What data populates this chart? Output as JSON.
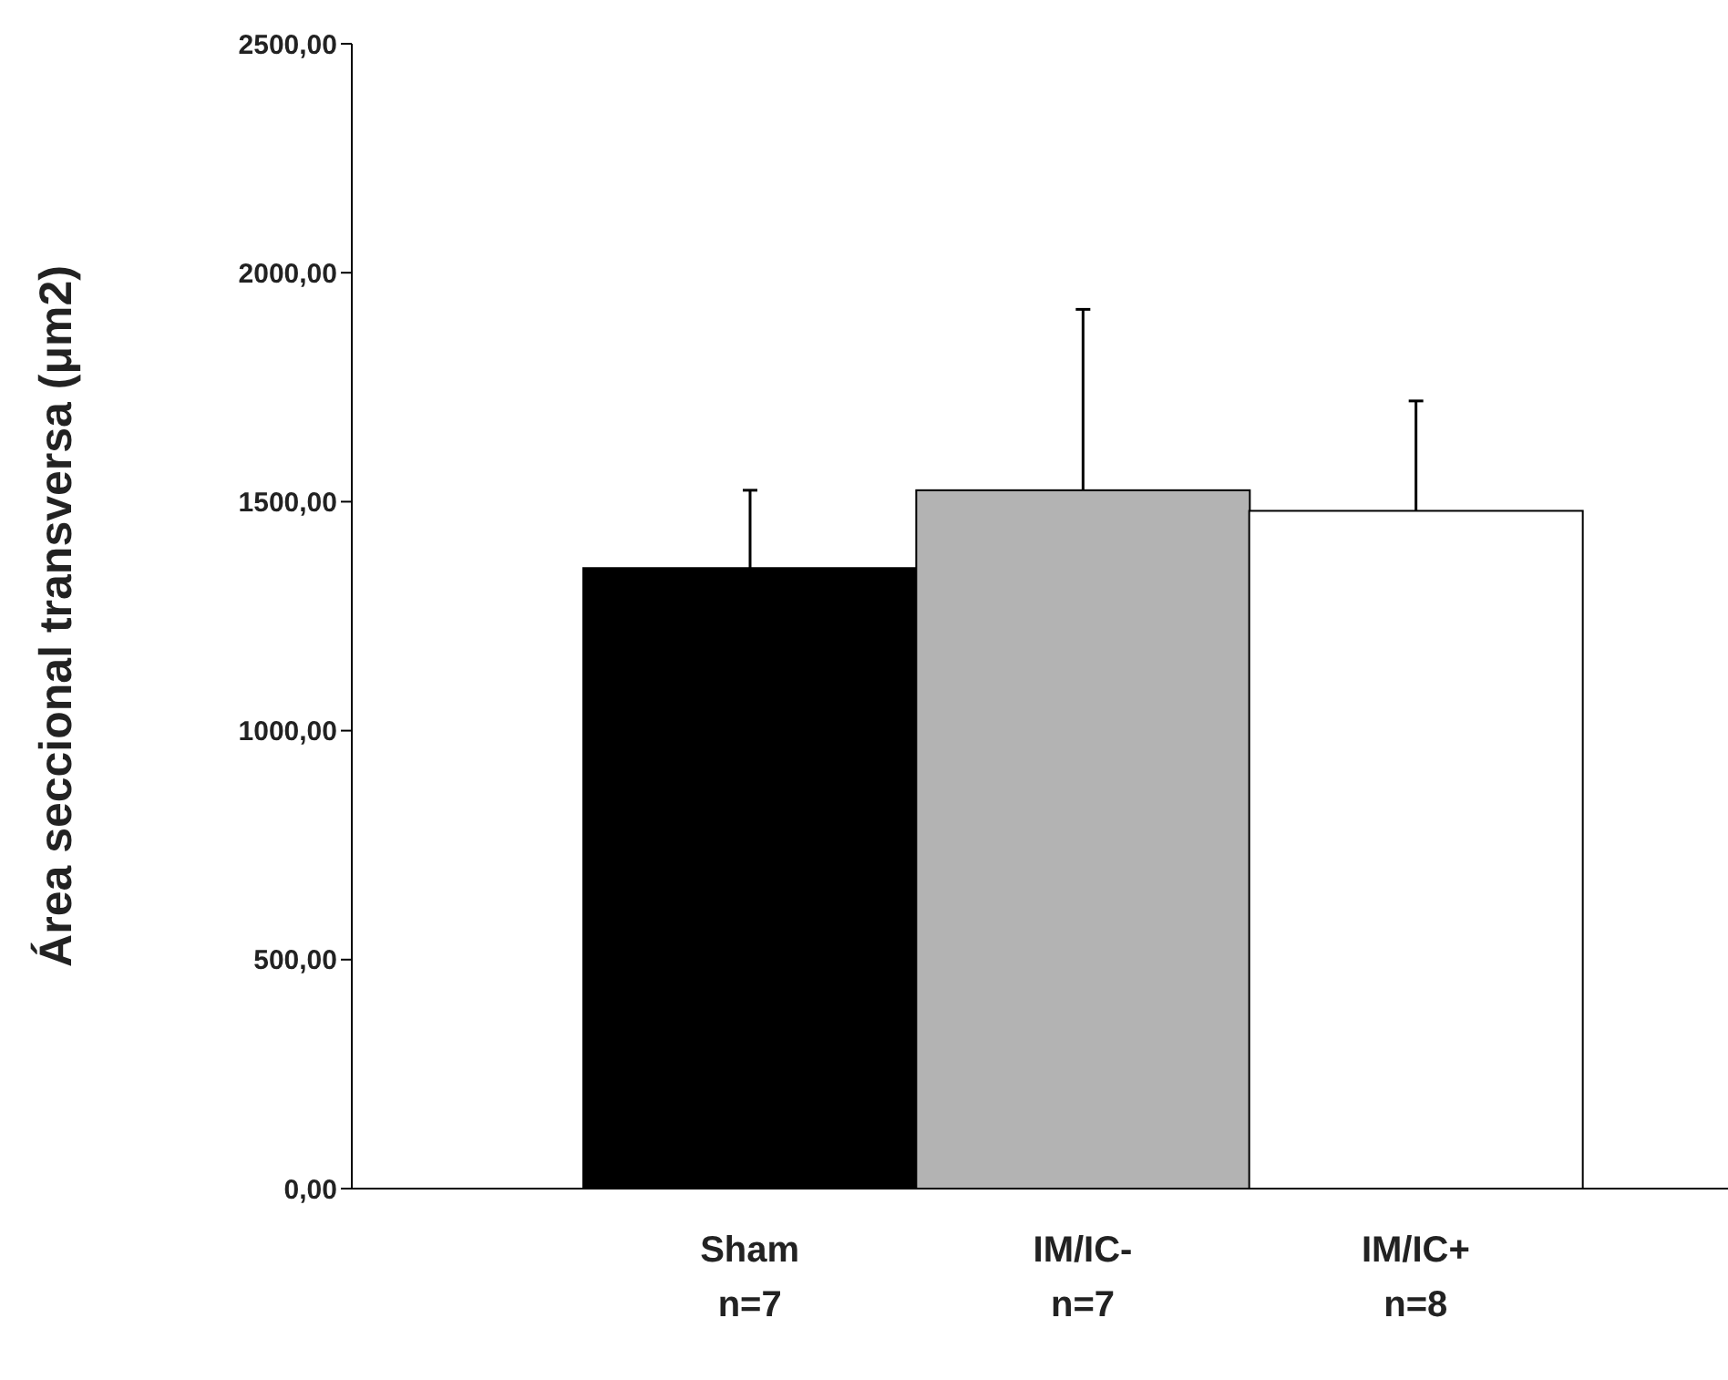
{
  "chart_data": {
    "type": "bar",
    "ylabel": "Área seccional transversa (μm2)",
    "categories": [
      "Sham\nn=7",
      "IM/IC-\nn=7",
      "IM/IC+\nn=8"
    ],
    "values": [
      1355,
      1525,
      1480
    ],
    "colors": [
      "#000000",
      "#b3b3b3",
      "#ffffff"
    ],
    "errors": [
      [
        1355,
        1525
      ],
      [
        1525,
        1920
      ],
      [
        1480,
        1720
      ]
    ],
    "ylim": [
      0,
      2500
    ],
    "yticks": [
      {
        "value": 0,
        "label": "0,00"
      },
      {
        "value": 500,
        "label": "500,00"
      },
      {
        "value": 1000,
        "label": "1000,00"
      },
      {
        "value": 1500,
        "label": "1500,00"
      },
      {
        "value": 2000,
        "label": "2000,00"
      },
      {
        "value": 2500,
        "label": "2500,00"
      }
    ],
    "grid": false
  }
}
